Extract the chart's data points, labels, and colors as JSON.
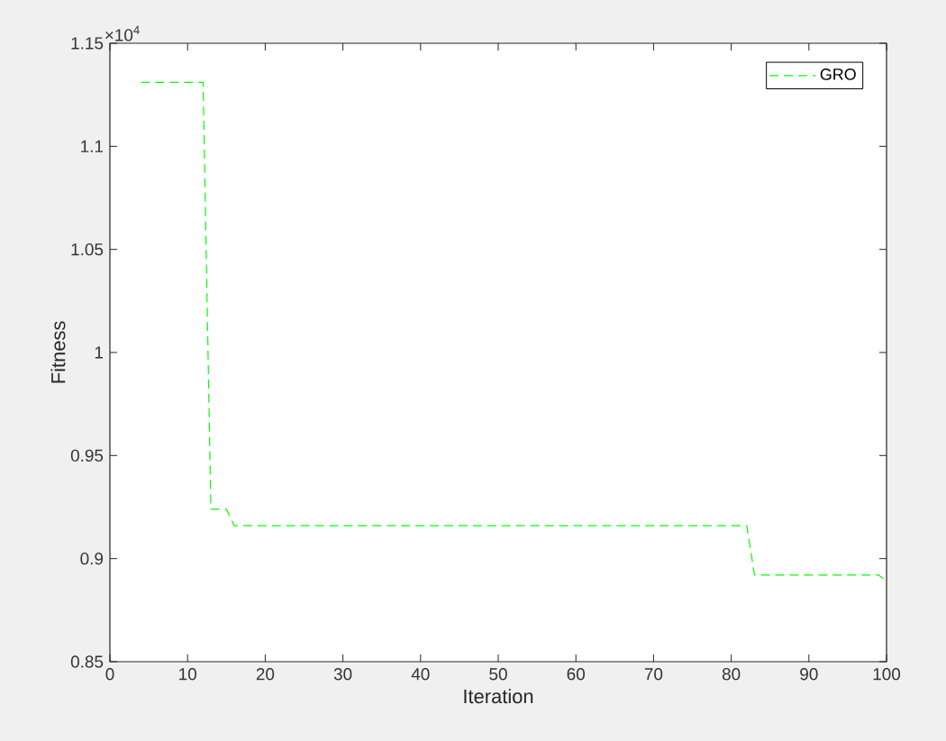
{
  "chart_data": {
    "type": "line",
    "xlabel": "Iteration",
    "ylabel": "Fitness",
    "annotations": [
      "×10$^{4}$"
    ],
    "x": [
      4,
      12,
      13,
      15,
      16,
      82,
      83,
      99,
      100
    ],
    "series": [
      {
        "name": "GRO",
        "color": "#00ff00",
        "values": [
          1.131,
          1.131,
          0.924,
          0.924,
          0.916,
          0.916,
          0.892,
          0.892,
          0.889
        ]
      }
    ],
    "xlim": [
      0,
      100
    ],
    "xticks": [
      0,
      10,
      20,
      30,
      40,
      50,
      60,
      70,
      80,
      90,
      100
    ],
    "ylim": [
      0.85,
      1.15
    ],
    "yticks": [
      0.85,
      0.9,
      0.95,
      1,
      1.05,
      1.1,
      1.15
    ],
    "legend": "top right",
    "line_style": "dashed",
    "marker": "none",
    "grid": false
  }
}
